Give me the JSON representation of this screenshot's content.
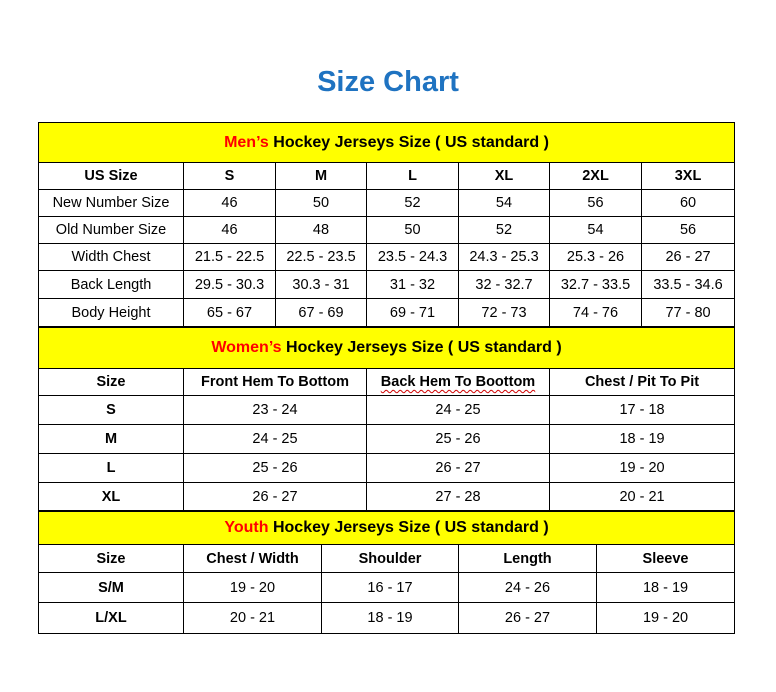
{
  "title": "Size Chart",
  "colors": {
    "title": "#1F73C1",
    "section_bg": "#FFFF00",
    "highlight": "#FF0000"
  },
  "sections": [
    {
      "key": "men",
      "heading_highlight": "Men’s",
      "heading_rest": " Hockey Jerseys Size ( US standard )",
      "columns": [
        "US Size",
        "S",
        "M",
        "L",
        "XL",
        "2XL",
        "3XL"
      ],
      "rows": [
        [
          "New Number Size",
          "46",
          "50",
          "52",
          "54",
          "56",
          "60"
        ],
        [
          "Old Number Size",
          "46",
          "48",
          "50",
          "52",
          "54",
          "56"
        ],
        [
          "Width Chest",
          "21.5 - 22.5",
          "22.5 - 23.5",
          "23.5 - 24.3",
          "24.3 - 25.3",
          "25.3 - 26",
          "26 - 27"
        ],
        [
          "Back Length",
          "29.5 - 30.3",
          "30.3 - 31",
          "31 - 32",
          "32 - 32.7",
          "32.7 - 33.5",
          "33.5 - 34.6"
        ],
        [
          "Body Height",
          "65 - 67",
          "67 - 69",
          "69 - 71",
          "72 - 73",
          "74 - 76",
          "77 - 80"
        ]
      ]
    },
    {
      "key": "women",
      "heading_highlight": "Women’s",
      "heading_rest": " Hockey Jerseys Size ( US standard )",
      "columns": [
        "Size",
        "Front Hem To Bottom",
        "Back Hem To Boottom",
        "Chest / Pit To Pit"
      ],
      "rows": [
        [
          "S",
          "23 - 24",
          "24 - 25",
          "17 - 18"
        ],
        [
          "M",
          "24 - 25",
          "25 - 26",
          "18 - 19"
        ],
        [
          "L",
          "25 - 26",
          "26 - 27",
          "19 - 20"
        ],
        [
          "XL",
          "26 - 27",
          "27 - 28",
          "20 - 21"
        ]
      ]
    },
    {
      "key": "youth",
      "heading_highlight": "Youth",
      "heading_rest": " Hockey Jerseys Size ( US standard )",
      "columns": [
        "Size",
        "Chest / Width",
        "Shoulder",
        "Length",
        "Sleeve"
      ],
      "rows": [
        [
          "S/M",
          "19 - 20",
          "16 - 17",
          "24 - 26",
          "18 - 19"
        ],
        [
          "L/XL",
          "20 - 21",
          "18 - 19",
          "26 - 27",
          "19 - 20"
        ]
      ]
    }
  ]
}
